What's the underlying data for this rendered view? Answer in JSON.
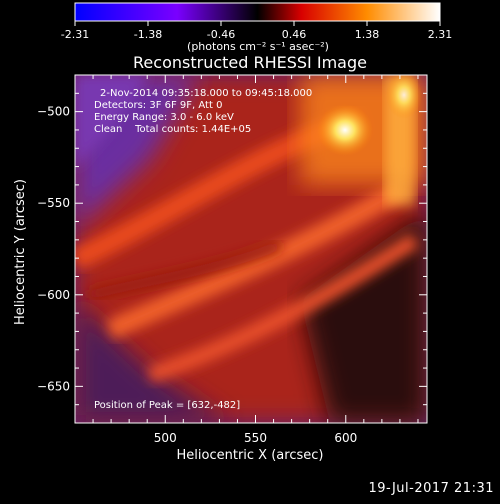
{
  "colorbar": {
    "ticks": [
      "-2.31",
      "-1.38",
      "-0.46",
      "0.46",
      "1.38",
      "2.31"
    ],
    "unit_label": "(photons cm⁻² s⁻¹ asec⁻²)",
    "min": -2.31,
    "max": 2.31,
    "stops": [
      "#0000ff",
      "#7a00ff",
      "#000000",
      "#ff0000",
      "#ff9900",
      "#ffffff"
    ]
  },
  "chart_data": {
    "type": "heatmap",
    "title": "Reconstructed RHESSI Image",
    "xlabel": "Heliocentric X (arcsec)",
    "ylabel": "Heliocentric Y (arcsec)",
    "xlim": [
      450,
      645
    ],
    "ylim": [
      -670,
      -480
    ],
    "xticks": [
      500,
      550,
      600
    ],
    "yticks": [
      -500,
      -550,
      -600,
      -650
    ],
    "annotations": {
      "time_range": "2-Nov-2014 09:35:18.000 to 09:45:18.000",
      "detectors": "Detectors: 3F 6F 9F, Att 0",
      "energy": "Energy Range: 3.0 - 6.0 keV",
      "method": "Clean    Total counts: 1.44E+05",
      "peak": "Position of Peak = [632,-482]"
    },
    "peak": [
      632,
      -482
    ]
  },
  "footer": {
    "date": "19-Jul-2017 21:31"
  }
}
